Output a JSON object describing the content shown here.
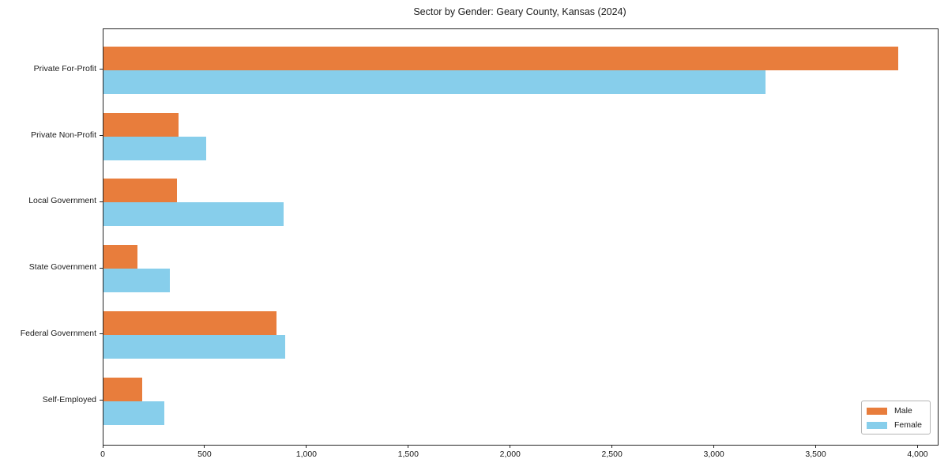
{
  "page": {
    "background_color": "#ffffff",
    "text_color": "#1a1a1a",
    "spine_color": "#262626"
  },
  "chart_data": {
    "type": "bar",
    "orientation": "horizontal",
    "title": "Sector by Gender: Geary County, Kansas (2024)",
    "xlabel": "",
    "ylabel": "",
    "grid": false,
    "categories": [
      "Private For-Profit",
      "Private Non-Profit",
      "Local Government",
      "State Government",
      "Federal Government",
      "Self-Employed"
    ],
    "series": [
      {
        "name": "Male",
        "color": "#E87D3C",
        "values": [
          3900,
          370,
          360,
          165,
          850,
          190
        ]
      },
      {
        "name": "Female",
        "color": "#87CEEB",
        "values": [
          3250,
          505,
          885,
          325,
          890,
          300
        ]
      }
    ],
    "xlim": [
      0,
      4095
    ],
    "x_ticks": [
      {
        "value": 0,
        "label": "0"
      },
      {
        "value": 500,
        "label": "500"
      },
      {
        "value": 1000,
        "label": "1,000"
      },
      {
        "value": 1500,
        "label": "1,500"
      },
      {
        "value": 2000,
        "label": "2,000"
      },
      {
        "value": 2500,
        "label": "2,500"
      },
      {
        "value": 3000,
        "label": "3,000"
      },
      {
        "value": 3500,
        "label": "3,500"
      },
      {
        "value": 4000,
        "label": "4,000"
      }
    ],
    "legend": {
      "position": "lower right",
      "labels": [
        "Male",
        "Female"
      ]
    }
  }
}
